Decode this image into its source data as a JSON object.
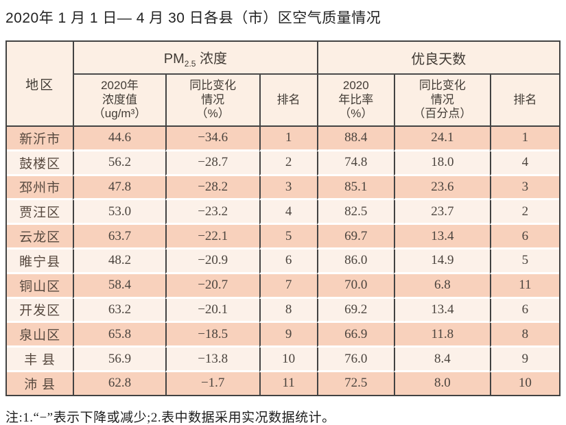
{
  "title": "2020年 1 月 1 日— 4 月 30 日各县（市）区空气质量情况",
  "colors": {
    "stripe_dark": "#f8d1bc",
    "stripe_light": "#fcf1e9",
    "header_bg": "#fcefe4",
    "border": "#424242"
  },
  "table": {
    "region_header": "地区",
    "pm_group": {
      "prefix": "PM",
      "sub": "2.5",
      "suffix": " 浓度"
    },
    "days_group": "优良天数",
    "subheaders": [
      "2020年\n浓度值\n（ug/m³）",
      "同比变化\n情况\n（%）",
      "排名",
      "2020\n年比率\n（%）",
      "同比变化\n情况\n（百分点）",
      "排名"
    ],
    "rows": [
      {
        "region": "新沂市",
        "pm_value": "44.6",
        "pm_change": "−34.6",
        "pm_rank": "1",
        "days_ratio": "88.4",
        "days_change": "24.1",
        "days_rank": "1"
      },
      {
        "region": "鼓楼区",
        "pm_value": "56.2",
        "pm_change": "−28.7",
        "pm_rank": "2",
        "days_ratio": "74.8",
        "days_change": "18.0",
        "days_rank": "4"
      },
      {
        "region": "邳州市",
        "pm_value": "47.8",
        "pm_change": "−28.2",
        "pm_rank": "3",
        "days_ratio": "85.1",
        "days_change": "23.6",
        "days_rank": "3"
      },
      {
        "region": "贾汪区",
        "pm_value": "53.0",
        "pm_change": "−23.2",
        "pm_rank": "4",
        "days_ratio": "82.5",
        "days_change": "23.7",
        "days_rank": "2"
      },
      {
        "region": "云龙区",
        "pm_value": "63.7",
        "pm_change": "−22.1",
        "pm_rank": "5",
        "days_ratio": "69.7",
        "days_change": "13.4",
        "days_rank": "6"
      },
      {
        "region": "睢宁县",
        "pm_value": "48.2",
        "pm_change": "−20.9",
        "pm_rank": "6",
        "days_ratio": "86.0",
        "days_change": "14.9",
        "days_rank": "5"
      },
      {
        "region": "铜山区",
        "pm_value": "58.4",
        "pm_change": "−20.7",
        "pm_rank": "7",
        "days_ratio": "70.0",
        "days_change": "6.8",
        "days_rank": "11"
      },
      {
        "region": "开发区",
        "pm_value": "63.2",
        "pm_change": "−20.1",
        "pm_rank": "8",
        "days_ratio": "69.2",
        "days_change": "13.4",
        "days_rank": "6"
      },
      {
        "region": "泉山区",
        "pm_value": "65.8",
        "pm_change": "−18.5",
        "pm_rank": "9",
        "days_ratio": "66.9",
        "days_change": "11.8",
        "days_rank": "8"
      },
      {
        "region": "丰 县",
        "pm_value": "56.9",
        "pm_change": "−13.8",
        "pm_rank": "10",
        "days_ratio": "76.0",
        "days_change": "8.4",
        "days_rank": "9"
      },
      {
        "region": "沛 县",
        "pm_value": "62.8",
        "pm_change": "−1.7",
        "pm_rank": "11",
        "days_ratio": "72.5",
        "days_change": "8.0",
        "days_rank": "10"
      }
    ]
  },
  "footnote": "注:1.“−”表示下降或减少;2.表中数据采用实况数据统计。"
}
